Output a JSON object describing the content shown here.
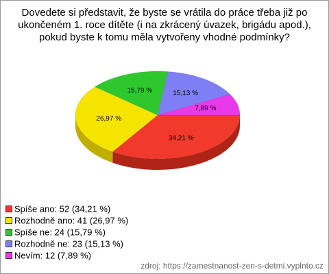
{
  "chart_data": {
    "type": "pie",
    "title_lines": [
      "Dovedete si představit, že byste se vrátila do práce třeba již po",
      "ukončeném 1. roce dítěte (i na zkrácený úvazek, brigádu apod.),",
      "pokud byste k tomu měla vytvořeny vhodné podmínky?"
    ],
    "categories": [
      "Spíše ano",
      "Rozhodně ano",
      "Spíše ne",
      "Rozhodně ne",
      "Nevím"
    ],
    "values": [
      34.21,
      26.97,
      15.79,
      15.13,
      7.89
    ],
    "value_labels": [
      "34,21 %",
      "26,97 %",
      "15,79 %",
      "15,13 %",
      "7,89 %"
    ],
    "legend": [
      "Spíše ano: 52 (34,21 %)",
      "Rozhodně ano: 41 (26,97 %)",
      "Spíše ne: 24 (15,79 %)",
      "Rozhodně ne: 23 (15,13 %)",
      "Nevím: 12 (7,89 %)"
    ],
    "colors": [
      "#f23a2c",
      "#f5e400",
      "#2ec82e",
      "#7f7ff5",
      "#e83ae8"
    ],
    "side_colors": [
      "#b02418",
      "#bfae00",
      "#1e8f1e",
      "#5454b8",
      "#a822a8"
    ],
    "source": "zdroj: https://zamestnanost-zen-s-detmi.vyplnto.cz"
  }
}
